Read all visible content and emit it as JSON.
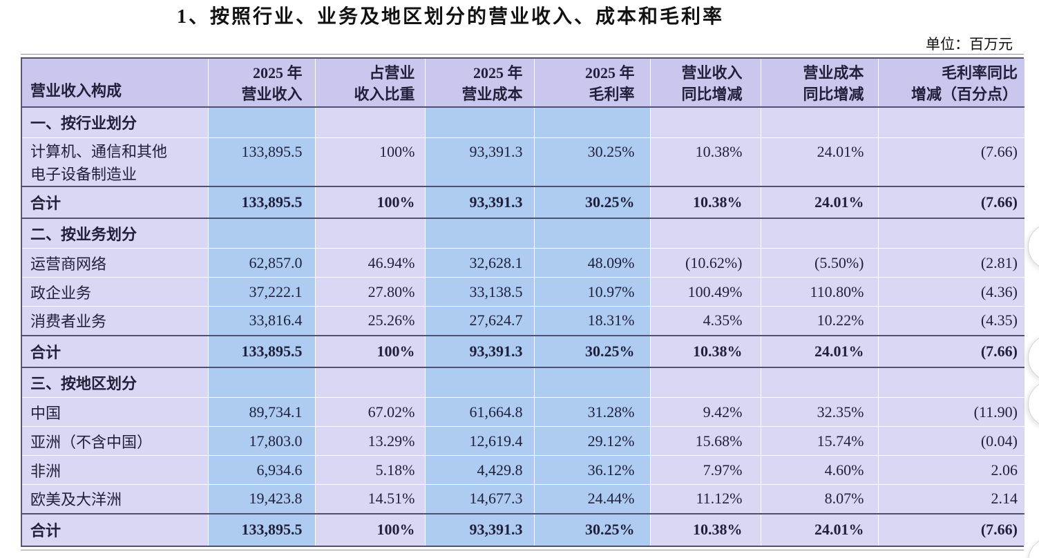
{
  "page": {
    "title": "1、按照行业、业务及地区划分的营业收入、成本和毛利率",
    "unit_label": "单位：百万元"
  },
  "colors": {
    "header_bg": "#c9c7ed",
    "row_bg": "#d9d7f4",
    "highlight_col_bg": "#aecbf2",
    "rule": "#50506e",
    "text": "#20203a"
  },
  "table": {
    "columns": [
      {
        "id": "label",
        "line1": "营业收入构成",
        "line2": ""
      },
      {
        "id": "revenue_2025",
        "line1": "2025 年",
        "line2": "营业收入"
      },
      {
        "id": "revenue_share",
        "line1": "占营业",
        "line2": "收入比重"
      },
      {
        "id": "cost_2025",
        "line1": "2025 年",
        "line2": "营业成本"
      },
      {
        "id": "margin_2025",
        "line1": "2025 年",
        "line2": "毛利率"
      },
      {
        "id": "revenue_yoy",
        "line1": "营业收入",
        "line2": "同比增减"
      },
      {
        "id": "cost_yoy",
        "line1": "营业成本",
        "line2": "同比增减"
      },
      {
        "id": "margin_yoy",
        "line1": "毛利率同比",
        "line2": "增减（百分点）"
      }
    ],
    "rows": [
      {
        "type": "section",
        "label": "一、按行业划分",
        "values": [
          "",
          "",
          "",
          "",
          "",
          "",
          ""
        ]
      },
      {
        "type": "data",
        "tall": true,
        "label": "计算机、通信和其他\n电子设备制造业",
        "values": [
          "133,895.5",
          "100%",
          "93,391.3",
          "30.25%",
          "10.38%",
          "24.01%",
          "(7.66)"
        ]
      },
      {
        "type": "total",
        "label": "合计",
        "values": [
          "133,895.5",
          "100%",
          "93,391.3",
          "30.25%",
          "10.38%",
          "24.01%",
          "(7.66)"
        ]
      },
      {
        "type": "section",
        "label": "二、按业务划分",
        "values": [
          "",
          "",
          "",
          "",
          "",
          "",
          ""
        ]
      },
      {
        "type": "data",
        "label": "运营商网络",
        "values": [
          "62,857.0",
          "46.94%",
          "32,628.1",
          "48.09%",
          "(10.62%)",
          "(5.50%)",
          "(2.81)"
        ]
      },
      {
        "type": "data",
        "label": "政企业务",
        "values": [
          "37,222.1",
          "27.80%",
          "33,138.5",
          "10.97%",
          "100.49%",
          "110.80%",
          "(4.36)"
        ]
      },
      {
        "type": "data",
        "label": "消费者业务",
        "values": [
          "33,816.4",
          "25.26%",
          "27,624.7",
          "18.31%",
          "4.35%",
          "10.22%",
          "(4.35)"
        ]
      },
      {
        "type": "total",
        "label": "合计",
        "values": [
          "133,895.5",
          "100%",
          "93,391.3",
          "30.25%",
          "10.38%",
          "24.01%",
          "(7.66)"
        ]
      },
      {
        "type": "section",
        "label": "三、按地区划分",
        "values": [
          "",
          "",
          "",
          "",
          "",
          "",
          ""
        ]
      },
      {
        "type": "data",
        "label": "中国",
        "values": [
          "89,734.1",
          "67.02%",
          "61,664.8",
          "31.28%",
          "9.42%",
          "32.35%",
          "(11.90)"
        ]
      },
      {
        "type": "data",
        "label": "亚洲（不含中国）",
        "values": [
          "17,803.0",
          "13.29%",
          "12,619.4",
          "29.12%",
          "15.68%",
          "15.74%",
          "(0.04)"
        ]
      },
      {
        "type": "data",
        "label": "非洲",
        "values": [
          "6,934.6",
          "5.18%",
          "4,429.8",
          "36.12%",
          "7.97%",
          "4.60%",
          "2.06"
        ]
      },
      {
        "type": "data",
        "label": "欧美及大洋洲",
        "values": [
          "19,423.8",
          "14.51%",
          "14,677.3",
          "24.44%",
          "11.12%",
          "8.07%",
          "2.14"
        ]
      },
      {
        "type": "total",
        "label": "合计",
        "values": [
          "133,895.5",
          "100%",
          "93,391.3",
          "30.25%",
          "10.38%",
          "24.01%",
          "(7.66)"
        ]
      }
    ]
  },
  "right_edge_widgets": {
    "visible_circle_buttons": 4
  }
}
